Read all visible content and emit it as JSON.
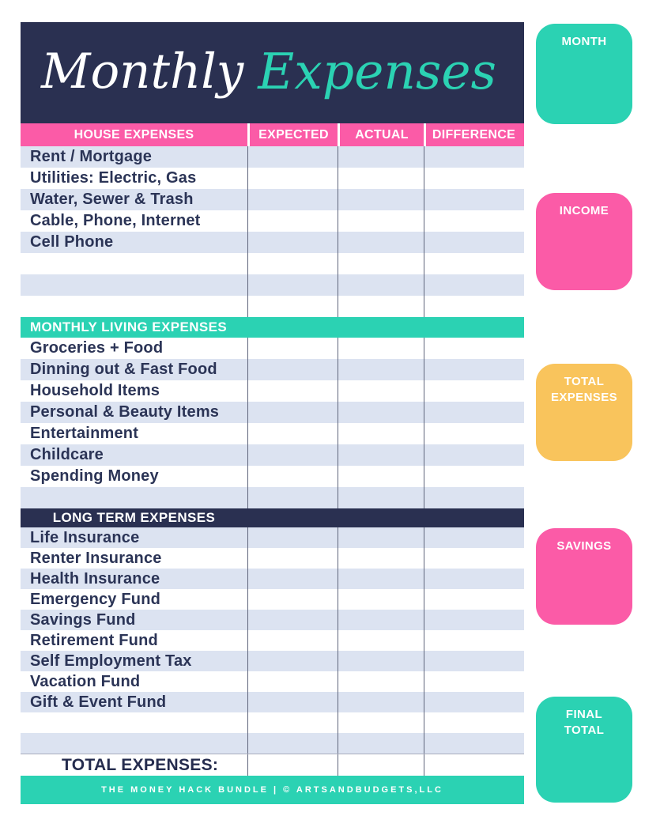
{
  "title": {
    "word1": "Monthly",
    "word2": "Expenses"
  },
  "table": {
    "columns": [
      "EXPECTED",
      "ACTUAL",
      "DIFFERENCE"
    ],
    "sections": [
      {
        "title": "HOUSE EXPENSES",
        "rows": [
          "Rent / Mortgage",
          "Utilities: Electric, Gas",
          "Water, Sewer & Trash",
          "Cable, Phone, Internet",
          "Cell Phone",
          "",
          "",
          ""
        ]
      },
      {
        "title": "MONTHLY LIVING EXPENSES",
        "rows": [
          "Groceries + Food",
          "Dinning out & Fast Food",
          "Household Items",
          "Personal & Beauty Items",
          "Entertainment",
          "Childcare",
          "Spending Money",
          ""
        ]
      },
      {
        "title": "LONG TERM EXPENSES",
        "rows": [
          "Life Insurance",
          "Renter Insurance",
          "Health Insurance",
          "Emergency Fund",
          "Savings Fund",
          "Retirement Fund",
          "Self Employment Tax",
          "Vacation Fund",
          "Gift & Event Fund",
          "",
          ""
        ]
      }
    ],
    "total_label": "TOTAL EXPENSES:"
  },
  "sidebar": {
    "boxes": [
      {
        "label": "MONTH"
      },
      {
        "label": "INCOME"
      },
      {
        "label": "TOTAL EXPENSES"
      },
      {
        "label": "SAVINGS"
      },
      {
        "label": "FINAL TOTAL"
      }
    ]
  },
  "footer": {
    "text": "THE MONEY HACK BUNDLE |  © ARTSANDBUDGETS,LLC"
  },
  "colors": {
    "navy": "#2a3051",
    "pink": "#fb5ba7",
    "teal": "#2bd2b3",
    "orange": "#f9c45c",
    "row_blue": "#dce3f1",
    "label_text": "#2b3456"
  }
}
